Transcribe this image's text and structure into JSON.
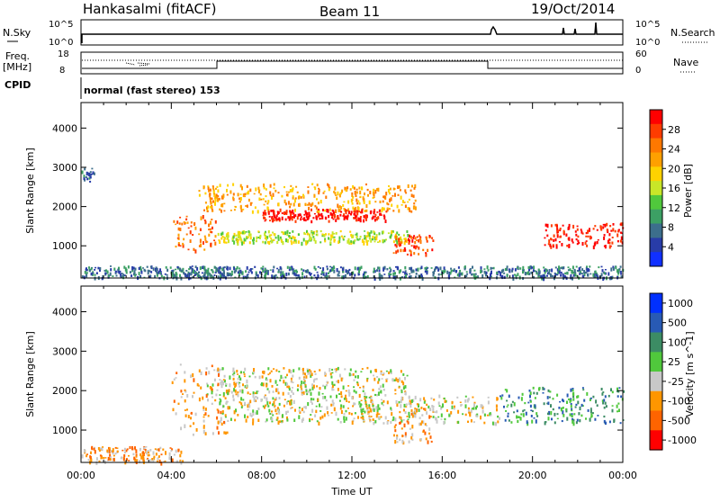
{
  "header": {
    "station": "Hankasalmi (fitACF)",
    "beam": "Beam 11",
    "date": "19/Oct/2014"
  },
  "status_panels": {
    "nsky": {
      "label": "N.Sky",
      "ticks": [
        "10^5",
        "10^0"
      ],
      "right_ticks": [
        "10^5",
        "10^0"
      ],
      "right_label": "N.Search"
    },
    "freq": {
      "label_line1": "Freq.",
      "label_line2": "[MHz]",
      "ticks": [
        "18",
        "8"
      ],
      "right_ticks": [
        "60",
        "0"
      ],
      "right_label": "Nave"
    },
    "cpid": {
      "label": "CPID",
      "mode": "normal (fast stereo) 153"
    }
  },
  "chart_data": [
    {
      "type": "heatmap",
      "panel": "power",
      "xlabel": "",
      "ylabel": "Slant Range [km]",
      "y_ticks": [
        1000,
        2000,
        3000,
        4000
      ],
      "ylim": [
        180,
        4650
      ],
      "colorbar": {
        "label": "Power [dB]",
        "ticks": [
          "4",
          "8",
          "12",
          "16",
          "20",
          "24",
          "28"
        ],
        "colors": [
          "#1030ff",
          "#283ca8",
          "#3c6e8c",
          "#3ca064",
          "#50c83c",
          "#c8e628",
          "#ffd200",
          "#ffa000",
          "#ff7800",
          "#ff3c00",
          "#ff0000"
        ]
      },
      "features": [
        {
          "start_hour": 5.2,
          "end_hour": 14.8,
          "range_km": [
            1900,
            2600
          ],
          "level": 7
        },
        {
          "start_hour": 8.0,
          "end_hour": 13.5,
          "range_km": [
            1650,
            1950
          ],
          "level": 10
        },
        {
          "start_hour": 6.0,
          "end_hour": 14.5,
          "range_km": [
            1100,
            1400
          ],
          "level": 5
        },
        {
          "start_hour": 13.8,
          "end_hour": 15.6,
          "range_km": [
            800,
            1300
          ],
          "level": 9
        },
        {
          "start_hour": 4.0,
          "end_hour": 6.0,
          "range_km": [
            900,
            1800
          ],
          "level": 8
        },
        {
          "start_hour": 20.5,
          "end_hour": 24.0,
          "range_km": [
            1000,
            1600
          ],
          "level": 10
        },
        {
          "start_hour": 0.0,
          "end_hour": 0.6,
          "range_km": [
            2600,
            3000
          ],
          "level": 2
        },
        {
          "start_hour": 0.0,
          "end_hour": 24.0,
          "range_km": [
            200,
            500
          ],
          "level": 2
        }
      ]
    },
    {
      "type": "heatmap",
      "panel": "velocity",
      "xlabel": "Time UT",
      "ylabel": "Slant Range [km]",
      "y_ticks": [
        1000,
        2000,
        3000,
        4000
      ],
      "ylim": [
        180,
        4650
      ],
      "x_ticks": [
        "00:00",
        "04:00",
        "08:00",
        "12:00",
        "16:00",
        "20:00",
        "00:00"
      ],
      "xlim_hours": [
        0,
        24
      ],
      "colorbar": {
        "label": "Velocity [m s^-1]",
        "ticks": [
          "1000",
          "500",
          "100",
          "25",
          "-25",
          "-100",
          "-500",
          "-1000"
        ],
        "colors": [
          "#0030ff",
          "#285ab4",
          "#3c8c64",
          "#50c83c",
          "#c8c8c8",
          "#ff9600",
          "#ff6400",
          "#ff0000"
        ]
      },
      "features": [
        {
          "start_hour": 5.5,
          "end_hour": 14.5,
          "range_km": [
            1900,
            2600
          ],
          "level": 4
        },
        {
          "start_hour": 6.0,
          "end_hour": 18.5,
          "range_km": [
            1200,
            1900
          ],
          "level": 4
        },
        {
          "start_hour": 4.0,
          "end_hour": 6.5,
          "range_km": [
            900,
            2700
          ],
          "level": 5
        },
        {
          "start_hour": 13.8,
          "end_hour": 15.5,
          "range_km": [
            700,
            1600
          ],
          "level": 5
        },
        {
          "start_hour": 18.5,
          "end_hour": 24.0,
          "range_km": [
            1200,
            2100
          ],
          "level": 2
        },
        {
          "start_hour": 0.0,
          "end_hour": 4.5,
          "range_km": [
            200,
            600
          ],
          "level": 5
        }
      ]
    }
  ]
}
